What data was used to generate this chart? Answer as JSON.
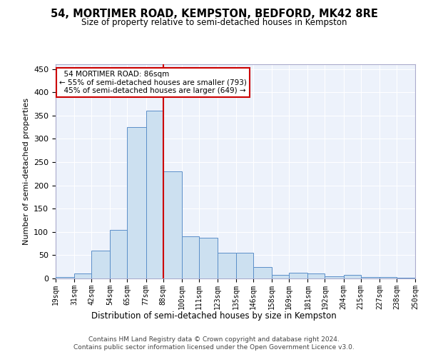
{
  "title": "54, MORTIMER ROAD, KEMPSTON, BEDFORD, MK42 8RE",
  "subtitle": "Size of property relative to semi-detached houses in Kempston",
  "xlabel": "Distribution of semi-detached houses by size in Kempston",
  "ylabel": "Number of semi-detached properties",
  "footer1": "Contains HM Land Registry data © Crown copyright and database right 2024.",
  "footer2": "Contains public sector information licensed under the Open Government Licence v3.0.",
  "property_label": "54 MORTIMER ROAD: 86sqm",
  "red_line_x": 88,
  "pct_smaller": 55,
  "count_smaller": 793,
  "pct_larger": 45,
  "count_larger": 649,
  "bin_labels": [
    "19sqm",
    "31sqm",
    "42sqm",
    "54sqm",
    "65sqm",
    "77sqm",
    "88sqm",
    "100sqm",
    "111sqm",
    "123sqm",
    "135sqm",
    "146sqm",
    "158sqm",
    "169sqm",
    "181sqm",
    "192sqm",
    "204sqm",
    "215sqm",
    "227sqm",
    "238sqm",
    "250sqm"
  ],
  "bin_edges": [
    19,
    31,
    42,
    54,
    65,
    77,
    88,
    100,
    111,
    123,
    135,
    146,
    158,
    169,
    181,
    192,
    204,
    215,
    227,
    238,
    250
  ],
  "bar_heights": [
    3,
    10,
    60,
    105,
    325,
    360,
    230,
    90,
    88,
    55,
    55,
    25,
    8,
    12,
    10,
    5,
    7,
    3,
    3,
    1,
    1
  ],
  "bar_color": "#cce0f0",
  "bar_edge_color": "#5b8fc9",
  "line_color": "#cc0000",
  "bg_color": "#edf2fb",
  "grid_color": "#ffffff",
  "fig_bg": "#ffffff",
  "ylim": [
    0,
    460
  ],
  "yticks": [
    0,
    50,
    100,
    150,
    200,
    250,
    300,
    350,
    400,
    450
  ]
}
